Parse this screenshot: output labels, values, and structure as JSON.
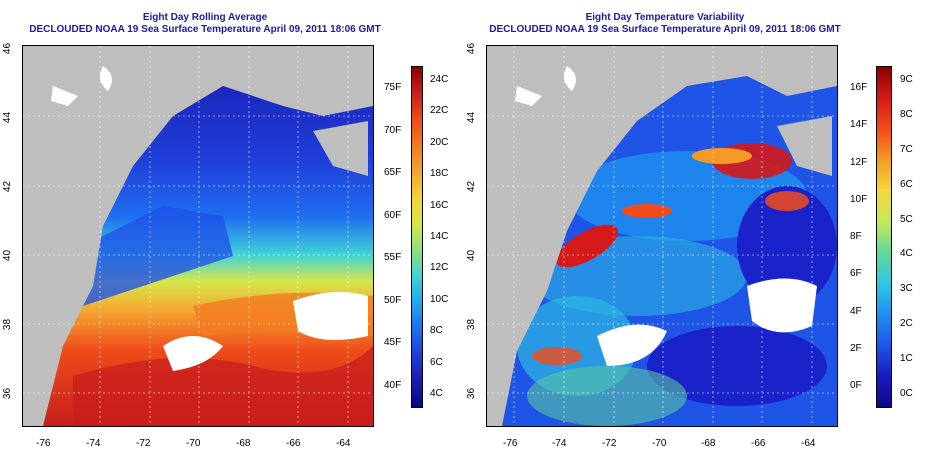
{
  "left_panel": {
    "title_line1": "Eight Day Rolling Average",
    "title_line2": "DECLOUDED NOAA 19 Sea Surface Temperature April 09, 2011 18:06 GMT",
    "lon_ticks": [
      "-76",
      "-74",
      "-72",
      "-70",
      "-68",
      "-66",
      "-64"
    ],
    "lat_ticks": [
      "46",
      "44",
      "42",
      "40",
      "38",
      "36"
    ],
    "colorbar": {
      "c_labels": [
        "24C",
        "22C",
        "20C",
        "18C",
        "16C",
        "14C",
        "12C",
        "10C",
        "8C",
        "6C",
        "4C"
      ],
      "f_labels": [
        "75F",
        "70F",
        "65F",
        "60F",
        "55F",
        "50F",
        "45F",
        "40F"
      ],
      "colors": [
        "#8b0000",
        "#c81e1e",
        "#ef4c1a",
        "#f47a1f",
        "#f4a330",
        "#f5d33c",
        "#d6e64a",
        "#8fe07a",
        "#3fd3d7",
        "#22a6ec",
        "#1f6ff0",
        "#1f3fd8",
        "#1a1ab0",
        "#0a0a80"
      ]
    }
  },
  "right_panel": {
    "title_line1": "Eight Day Temperature Variability",
    "title_line2": "DECLOUDED NOAA 19 Sea Surface Temperature April 09, 2011 18:06 GMT",
    "lon_ticks": [
      "-76",
      "-74",
      "-72",
      "-70",
      "-68",
      "-66",
      "-64"
    ],
    "lat_ticks": [
      "46",
      "44",
      "42",
      "40",
      "38",
      "36"
    ],
    "colorbar": {
      "c_labels": [
        "9C",
        "8C",
        "7C",
        "6C",
        "5C",
        "4C",
        "3C",
        "2C",
        "1C",
        "0C"
      ],
      "f_labels": [
        "16F",
        "14F",
        "12F",
        "10F",
        "8F",
        "6F",
        "4F",
        "2F",
        "0F"
      ],
      "colors": [
        "#8b0000",
        "#d41a1a",
        "#f44b1a",
        "#f59a25",
        "#f2d83b",
        "#c5e85a",
        "#63d89a",
        "#2fc7e3",
        "#1f8ef0",
        "#1e55e6",
        "#1a1ac4",
        "#0a0a85"
      ]
    }
  },
  "colors": {
    "title": "#1a1aa6",
    "land": "#bebebe"
  },
  "icons": {
    "map_left": "sst-average-map",
    "map_right": "sst-variability-map"
  }
}
